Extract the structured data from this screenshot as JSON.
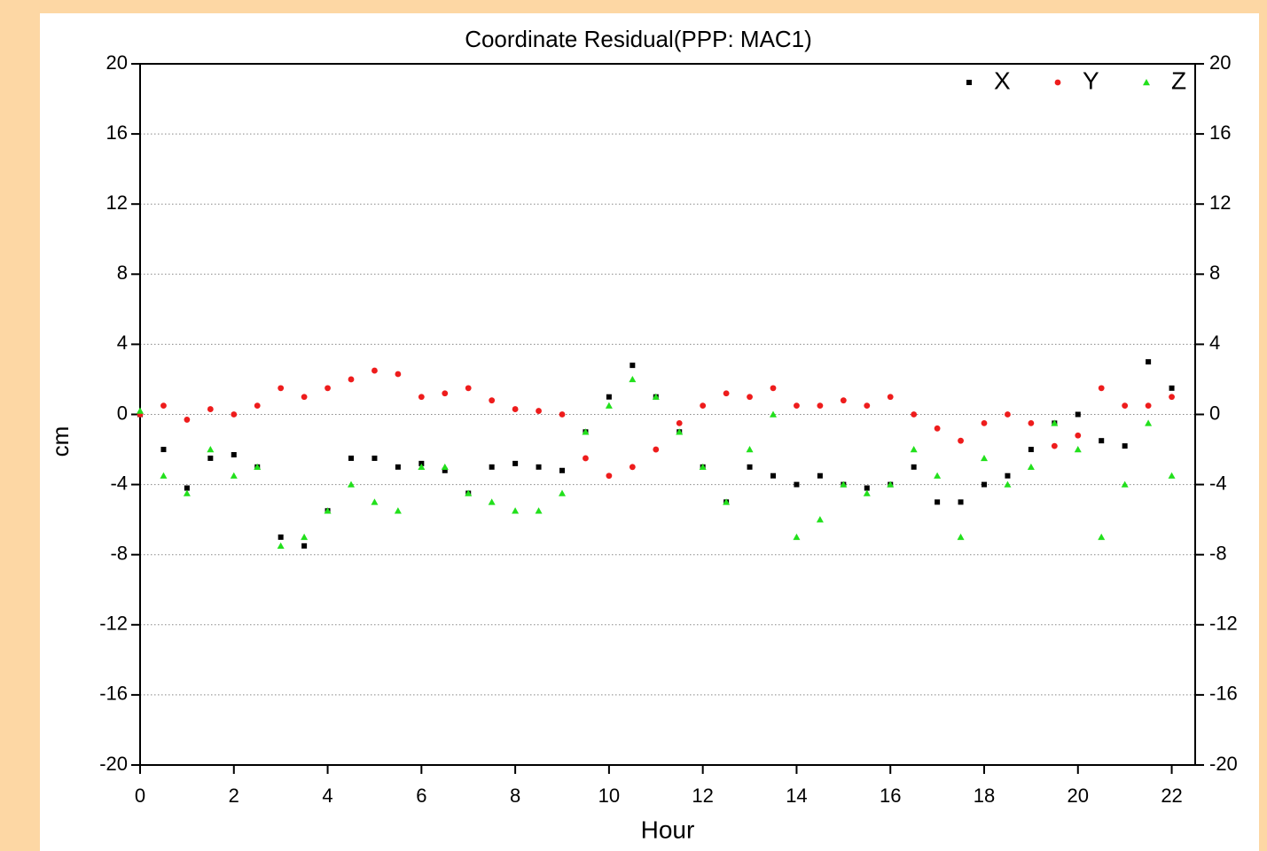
{
  "chart_data": {
    "type": "scatter",
    "title": "Coordinate Residual(PPP: MAC1)",
    "x_label": "Hour",
    "y_label": "cm",
    "x": [
      0,
      0.5,
      1,
      1.5,
      2,
      2.5,
      3,
      3.5,
      4,
      4.5,
      5,
      5.5,
      6,
      6.5,
      7,
      7.5,
      8,
      8.5,
      9,
      9.5,
      10,
      10.5,
      11,
      11.5,
      12,
      12.5,
      13,
      13.5,
      14,
      14.5,
      15,
      15.5,
      16,
      16.5,
      17,
      17.5,
      18,
      18.5,
      19,
      19.5,
      20,
      20.5,
      21,
      21.5,
      22
    ],
    "series": [
      {
        "name": "X",
        "color": "#000000",
        "marker": "square",
        "values": [
          0,
          -2,
          -4.2,
          -2.5,
          -2.3,
          -3,
          -7,
          -7.5,
          -5.5,
          -2.5,
          -2.5,
          -3,
          -2.8,
          -3.2,
          -4.5,
          -3,
          -2.8,
          -3,
          -3.2,
          -1,
          1,
          2.8,
          1,
          -1,
          -3,
          -5,
          -3,
          -3.5,
          -4,
          -3.5,
          -4,
          -4.2,
          -4,
          -3,
          -5,
          -5,
          -4,
          -3.5,
          -2,
          -0.5,
          0,
          -1.5,
          -1.8,
          3,
          1.5
        ]
      },
      {
        "name": "Y",
        "color": "#ee1c1c",
        "marker": "circle",
        "values": [
          0,
          0.5,
          -0.3,
          0.3,
          0,
          0.5,
          1.5,
          1,
          1.5,
          2,
          2.5,
          2.3,
          1,
          1.2,
          1.5,
          0.8,
          0.3,
          0.2,
          0,
          -2.5,
          -3.5,
          -3,
          -2,
          -0.5,
          0.5,
          1.2,
          1,
          1.5,
          0.5,
          0.5,
          0.8,
          0.5,
          1,
          0,
          -0.8,
          -1.5,
          -0.5,
          0,
          -0.5,
          -1.8,
          -1.2,
          1.5,
          0.5,
          0.5,
          1
        ]
      },
      {
        "name": "Z",
        "color": "#22e01c",
        "marker": "triangle",
        "values": [
          0.2,
          -3.5,
          -4.5,
          -2,
          -3.5,
          -3,
          -7.5,
          -7,
          -5.5,
          -4,
          -5,
          -5.5,
          -3,
          -3,
          -4.5,
          -5,
          -5.5,
          -5.5,
          -4.5,
          -1,
          0.5,
          2,
          1,
          -1,
          -3,
          -5,
          -2,
          0,
          -7,
          -6,
          -4,
          -4.5,
          -4,
          -2,
          -3.5,
          -7,
          -2.5,
          -4,
          -3,
          -0.5,
          -2,
          -7,
          -4,
          -0.5,
          -3.5
        ]
      }
    ],
    "xlim": [
      0,
      22.5
    ],
    "xticks": [
      0,
      2,
      4,
      6,
      8,
      10,
      12,
      14,
      16,
      18,
      20,
      22
    ],
    "ylim": [
      -20,
      20
    ],
    "yticks": [
      -20,
      -16,
      -12,
      -8,
      -4,
      0,
      4,
      8,
      12,
      16,
      20
    ],
    "y2lim": [
      -20,
      20
    ],
    "y2ticks": [
      -20,
      -16,
      -12,
      -8,
      -4,
      0,
      4,
      8,
      12,
      16,
      20
    ],
    "grid": true,
    "legend": "top-right"
  }
}
